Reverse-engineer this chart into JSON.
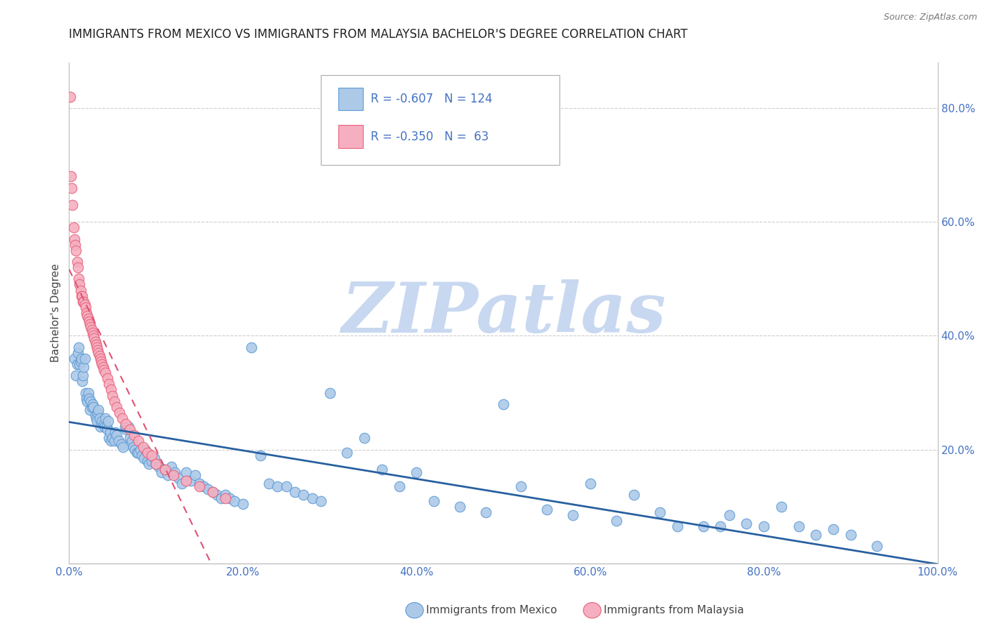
{
  "title": "IMMIGRANTS FROM MEXICO VS IMMIGRANTS FROM MALAYSIA BACHELOR'S DEGREE CORRELATION CHART",
  "source": "Source: ZipAtlas.com",
  "ylabel": "Bachelor's Degree",
  "xlim": [
    0.0,
    1.0
  ],
  "ylim": [
    0.0,
    0.88
  ],
  "ytick_values": [
    0.0,
    0.2,
    0.4,
    0.6,
    0.8
  ],
  "ytick_right_labels": [
    "",
    "20.0%",
    "40.0%",
    "60.0%",
    "80.0%"
  ],
  "xtick_values": [
    0.0,
    0.2,
    0.4,
    0.6,
    0.8,
    1.0
  ],
  "xtick_labels": [
    "0.0%",
    "20.0%",
    "40.0%",
    "60.0%",
    "80.0%",
    "100.0%"
  ],
  "mexico_color": "#adc9e8",
  "malaysia_color": "#f5afc0",
  "mexico_edge_color": "#5b9bd5",
  "malaysia_edge_color": "#e8607a",
  "trendline_mexico_color": "#2860a0",
  "trendline_malaysia_color": "#e05070",
  "legend_label_mexico": "Immigrants from Mexico",
  "legend_label_malaysia": "Immigrants from Malaysia",
  "watermark": "ZIPatlas",
  "watermark_color": "#c8d8f0",
  "tick_color": "#4472c4",
  "tick_fontsize": 11,
  "axis_label_fontsize": 11,
  "legend_text_color": "#4472c4",
  "mexico_x": [
    0.006,
    0.008,
    0.009,
    0.01,
    0.011,
    0.012,
    0.013,
    0.014,
    0.015,
    0.016,
    0.017,
    0.018,
    0.019,
    0.02,
    0.021,
    0.022,
    0.023,
    0.024,
    0.025,
    0.026,
    0.027,
    0.028,
    0.03,
    0.031,
    0.032,
    0.033,
    0.034,
    0.035,
    0.036,
    0.038,
    0.04,
    0.041,
    0.042,
    0.043,
    0.044,
    0.045,
    0.046,
    0.047,
    0.048,
    0.05,
    0.052,
    0.053,
    0.055,
    0.057,
    0.06,
    0.062,
    0.064,
    0.066,
    0.068,
    0.07,
    0.072,
    0.074,
    0.076,
    0.078,
    0.08,
    0.082,
    0.084,
    0.086,
    0.088,
    0.09,
    0.092,
    0.095,
    0.098,
    0.1,
    0.103,
    0.106,
    0.11,
    0.114,
    0.118,
    0.122,
    0.126,
    0.13,
    0.135,
    0.14,
    0.145,
    0.15,
    0.155,
    0.16,
    0.165,
    0.17,
    0.175,
    0.18,
    0.185,
    0.19,
    0.2,
    0.21,
    0.22,
    0.23,
    0.24,
    0.25,
    0.26,
    0.27,
    0.28,
    0.29,
    0.3,
    0.32,
    0.34,
    0.36,
    0.38,
    0.4,
    0.42,
    0.45,
    0.48,
    0.5,
    0.52,
    0.55,
    0.58,
    0.6,
    0.63,
    0.65,
    0.68,
    0.7,
    0.73,
    0.75,
    0.76,
    0.78,
    0.8,
    0.82,
    0.84,
    0.86,
    0.88,
    0.9,
    0.93
  ],
  "mexico_y": [
    0.36,
    0.33,
    0.35,
    0.37,
    0.38,
    0.35,
    0.355,
    0.36,
    0.32,
    0.33,
    0.345,
    0.36,
    0.3,
    0.29,
    0.285,
    0.3,
    0.29,
    0.27,
    0.285,
    0.275,
    0.28,
    0.275,
    0.26,
    0.255,
    0.25,
    0.265,
    0.27,
    0.255,
    0.24,
    0.25,
    0.245,
    0.24,
    0.255,
    0.24,
    0.235,
    0.25,
    0.22,
    0.23,
    0.215,
    0.22,
    0.215,
    0.23,
    0.225,
    0.215,
    0.21,
    0.205,
    0.24,
    0.235,
    0.24,
    0.22,
    0.215,
    0.205,
    0.2,
    0.195,
    0.195,
    0.2,
    0.19,
    0.185,
    0.2,
    0.18,
    0.175,
    0.18,
    0.185,
    0.175,
    0.17,
    0.16,
    0.165,
    0.155,
    0.17,
    0.16,
    0.15,
    0.14,
    0.16,
    0.145,
    0.155,
    0.14,
    0.135,
    0.13,
    0.125,
    0.12,
    0.115,
    0.12,
    0.115,
    0.11,
    0.105,
    0.38,
    0.19,
    0.14,
    0.135,
    0.135,
    0.125,
    0.12,
    0.115,
    0.11,
    0.3,
    0.195,
    0.22,
    0.165,
    0.135,
    0.16,
    0.11,
    0.1,
    0.09,
    0.28,
    0.135,
    0.095,
    0.085,
    0.14,
    0.075,
    0.12,
    0.09,
    0.065,
    0.065,
    0.065,
    0.085,
    0.07,
    0.065,
    0.1,
    0.065,
    0.05,
    0.06,
    0.05,
    0.03
  ],
  "malaysia_x": [
    0.001,
    0.002,
    0.003,
    0.004,
    0.005,
    0.006,
    0.007,
    0.008,
    0.009,
    0.01,
    0.011,
    0.012,
    0.013,
    0.014,
    0.015,
    0.016,
    0.017,
    0.018,
    0.019,
    0.02,
    0.021,
    0.022,
    0.023,
    0.024,
    0.025,
    0.026,
    0.027,
    0.028,
    0.029,
    0.03,
    0.031,
    0.032,
    0.033,
    0.034,
    0.035,
    0.036,
    0.037,
    0.038,
    0.039,
    0.04,
    0.042,
    0.044,
    0.046,
    0.048,
    0.05,
    0.052,
    0.055,
    0.058,
    0.061,
    0.065,
    0.07,
    0.075,
    0.08,
    0.085,
    0.09,
    0.095,
    0.1,
    0.11,
    0.12,
    0.135,
    0.15,
    0.165,
    0.18
  ],
  "malaysia_y": [
    0.82,
    0.68,
    0.66,
    0.63,
    0.59,
    0.57,
    0.56,
    0.55,
    0.53,
    0.52,
    0.5,
    0.49,
    0.48,
    0.47,
    0.47,
    0.46,
    0.46,
    0.455,
    0.45,
    0.44,
    0.435,
    0.43,
    0.425,
    0.42,
    0.415,
    0.41,
    0.405,
    0.4,
    0.395,
    0.39,
    0.385,
    0.38,
    0.375,
    0.37,
    0.365,
    0.36,
    0.355,
    0.35,
    0.345,
    0.34,
    0.335,
    0.325,
    0.315,
    0.305,
    0.295,
    0.285,
    0.275,
    0.265,
    0.255,
    0.245,
    0.235,
    0.225,
    0.215,
    0.205,
    0.195,
    0.19,
    0.175,
    0.165,
    0.155,
    0.145,
    0.135,
    0.125,
    0.115
  ]
}
